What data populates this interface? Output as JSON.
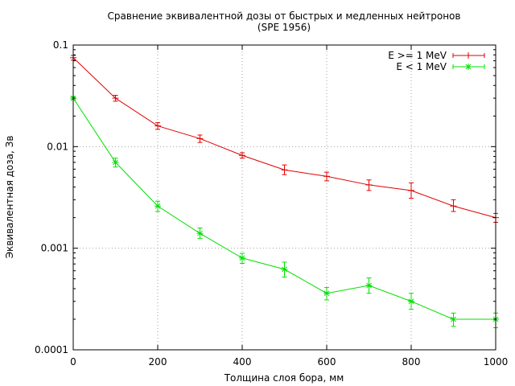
{
  "chart_data": {
    "type": "line",
    "title": "Сравнение эквивалентной дозы от быстрых и медленных нейтронов",
    "subtitle": "(SPE 1956)",
    "xlabel": "Толщина слоя бора, мм",
    "ylabel": "Эквивалентная доза, Зв",
    "xlim": [
      0,
      1000
    ],
    "ylim": [
      0.0001,
      0.1
    ],
    "y_scale": "log",
    "grid": true,
    "legend_position": "top-right",
    "x_ticks": [
      0,
      200,
      400,
      600,
      800,
      1000
    ],
    "x_tick_labels": [
      "0",
      "200",
      "400",
      "600",
      "800",
      "1000"
    ],
    "y_ticks": [
      0.0001,
      0.001,
      0.01,
      0.1
    ],
    "y_tick_labels": [
      "0.0001",
      "0.001",
      "0.01",
      "0.1"
    ],
    "series": [
      {
        "name": "E >= 1 MeV",
        "color": "#e00000",
        "marker": "plus",
        "x": [
          0,
          100,
          200,
          300,
          400,
          500,
          600,
          700,
          800,
          900,
          1000
        ],
        "y": [
          0.075,
          0.03,
          0.016,
          0.012,
          0.0082,
          0.0059,
          0.0051,
          0.0042,
          0.0037,
          0.0026,
          0.002
        ],
        "err_low": [
          0.071,
          0.028,
          0.0148,
          0.011,
          0.0077,
          0.0053,
          0.0046,
          0.0037,
          0.0031,
          0.0023,
          0.0018
        ],
        "err_high": [
          0.079,
          0.032,
          0.0172,
          0.013,
          0.0087,
          0.0066,
          0.0056,
          0.0047,
          0.0044,
          0.003,
          0.0022
        ]
      },
      {
        "name": "E < 1 MeV",
        "color": "#00e000",
        "marker": "star",
        "x": [
          0,
          100,
          200,
          300,
          400,
          500,
          600,
          700,
          800,
          900,
          1000
        ],
        "y": [
          0.03,
          0.007,
          0.0026,
          0.0014,
          0.0008,
          0.00062,
          0.00036,
          0.00043,
          0.0003,
          0.0002,
          0.0002
        ],
        "err_low": [
          0.029,
          0.0063,
          0.0023,
          0.00125,
          0.00071,
          0.00052,
          0.00031,
          0.00036,
          0.00025,
          0.00017,
          0.000165
        ],
        "err_high": [
          0.031,
          0.0077,
          0.0029,
          0.00158,
          0.00089,
          0.00073,
          0.00041,
          0.00051,
          0.00036,
          0.00023,
          0.00023
        ]
      }
    ]
  }
}
